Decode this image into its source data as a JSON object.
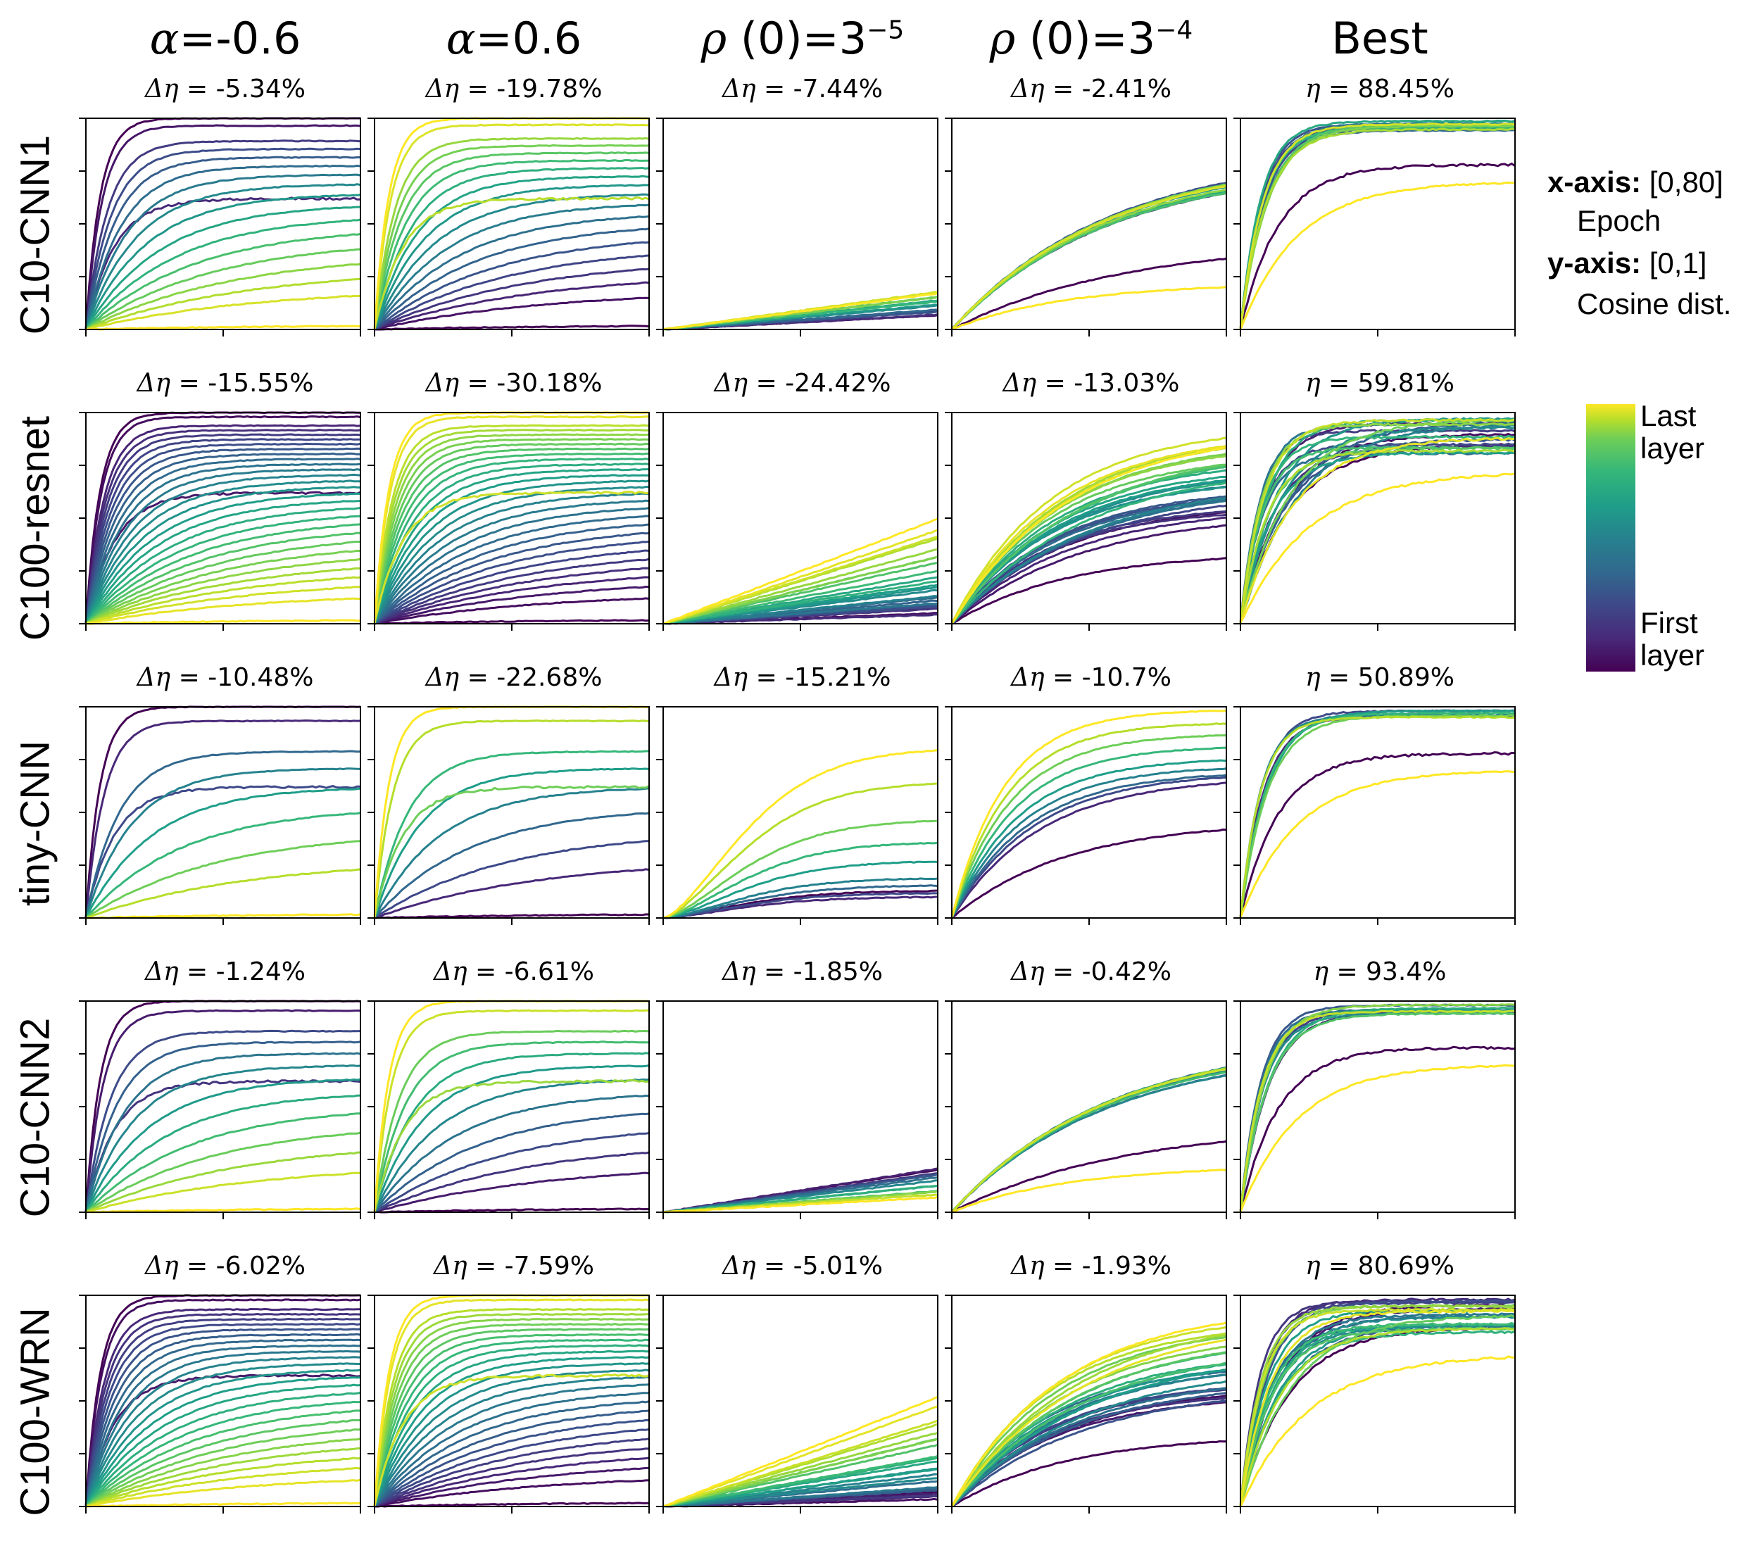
{
  "columns": [
    {
      "greek": "α",
      "text": "=-0.6"
    },
    {
      "greek": "α",
      "text": "=0.6"
    },
    {
      "greek": "ρ",
      "text": " (0)=3",
      "sup": "−5"
    },
    {
      "greek": "ρ",
      "text": " (0)=3",
      "sup": "−4"
    },
    {
      "greek": "",
      "text": "Best"
    }
  ],
  "rows": [
    "C10-CNN1",
    "C100-resnet",
    "tiny-CNN",
    "C10-CNN2",
    "C100-WRN"
  ],
  "legend": {
    "x_bold": "x-axis:",
    "x_range": " [0,80]",
    "x_name": "Epoch",
    "y_bold": "y-axis:",
    "y_range": "  [0,1]",
    "y_name": "Cosine dist."
  },
  "colorbar": {
    "top_line1": "Last",
    "top_line2": "layer",
    "bottom_line1": "First",
    "bottom_line2": "layer",
    "colors": [
      "#440154",
      "#482878",
      "#3e4989",
      "#31688e",
      "#26828e",
      "#1f9e89",
      "#35b779",
      "#6ece58",
      "#b5de2b",
      "#fde725"
    ]
  },
  "chart_data": {
    "type": "line",
    "description_axes": {
      "x": "Epoch",
      "xlim": [
        0,
        80
      ],
      "y": "Cosine dist.",
      "ylim": [
        0,
        1
      ]
    },
    "panels": [
      [
        {
          "metric": "Δη",
          "value": "-5.34%",
          "shape": "fast",
          "lead": "dark",
          "n": 18,
          "seed": 3
        },
        {
          "metric": "Δη",
          "value": "-19.78%",
          "shape": "fast",
          "lead": "bright",
          "n": 20,
          "seed": 7
        },
        {
          "metric": "Δη",
          "value": "-7.44%",
          "shape": "linear_low",
          "n": 16,
          "seed": 11
        },
        {
          "metric": "Δη",
          "value": "-2.41%",
          "shape": "bundle_mid",
          "n": 18,
          "seed": 13
        },
        {
          "metric": "η",
          "value": "88.45%",
          "shape": "best",
          "n": 16,
          "seed": 17
        }
      ],
      [
        {
          "metric": "Δη",
          "value": "-15.55%",
          "shape": "fast",
          "lead": "dark",
          "n": 30,
          "seed": 19
        },
        {
          "metric": "Δη",
          "value": "-30.18%",
          "shape": "fast",
          "lead": "bright",
          "n": 30,
          "seed": 23
        },
        {
          "metric": "Δη",
          "value": "-24.42%",
          "shape": "linear_mid",
          "n": 26,
          "seed": 29
        },
        {
          "metric": "Δη",
          "value": "-13.03%",
          "shape": "bundle_spread",
          "n": 30,
          "seed": 31
        },
        {
          "metric": "η",
          "value": "59.81%",
          "shape": "best_spread",
          "n": 24,
          "seed": 37
        }
      ],
      [
        {
          "metric": "Δη",
          "value": "-10.48%",
          "shape": "fast",
          "lead": "dark",
          "n": 10,
          "seed": 41
        },
        {
          "metric": "Δη",
          "value": "-22.68%",
          "shape": "fast",
          "lead": "bright",
          "n": 10,
          "seed": 43
        },
        {
          "metric": "Δη",
          "value": "-15.21%",
          "shape": "sigmoid_low",
          "n": 10,
          "seed": 47
        },
        {
          "metric": "Δη",
          "value": "-10.7%",
          "shape": "bundle_high",
          "n": 10,
          "seed": 53
        },
        {
          "metric": "η",
          "value": "50.89%",
          "shape": "best",
          "n": 10,
          "seed": 59
        }
      ],
      [
        {
          "metric": "Δη",
          "value": "-1.24%",
          "shape": "fast",
          "lead": "dark",
          "n": 14,
          "seed": 61
        },
        {
          "metric": "Δη",
          "value": "-6.61%",
          "shape": "fast",
          "lead": "bright",
          "n": 14,
          "seed": 67
        },
        {
          "metric": "Δη",
          "value": "-1.85%",
          "shape": "linear_tiny",
          "n": 12,
          "seed": 71
        },
        {
          "metric": "Δη",
          "value": "-0.42%",
          "shape": "bundle_mid",
          "n": 14,
          "seed": 73
        },
        {
          "metric": "η",
          "value": "93.4%",
          "shape": "best",
          "n": 12,
          "seed": 79
        }
      ],
      [
        {
          "metric": "Δη",
          "value": "-6.02%",
          "shape": "fast",
          "lead": "dark",
          "n": 28,
          "seed": 83
        },
        {
          "metric": "Δη",
          "value": "-7.59%",
          "shape": "fast",
          "lead": "bright",
          "n": 28,
          "seed": 89
        },
        {
          "metric": "Δη",
          "value": "-5.01%",
          "shape": "linear_mid",
          "n": 26,
          "seed": 97
        },
        {
          "metric": "Δη",
          "value": "-1.93%",
          "shape": "bundle_spread",
          "n": 28,
          "seed": 101
        },
        {
          "metric": "η",
          "value": "80.69%",
          "shape": "best_spread",
          "n": 26,
          "seed": 103
        }
      ]
    ]
  }
}
